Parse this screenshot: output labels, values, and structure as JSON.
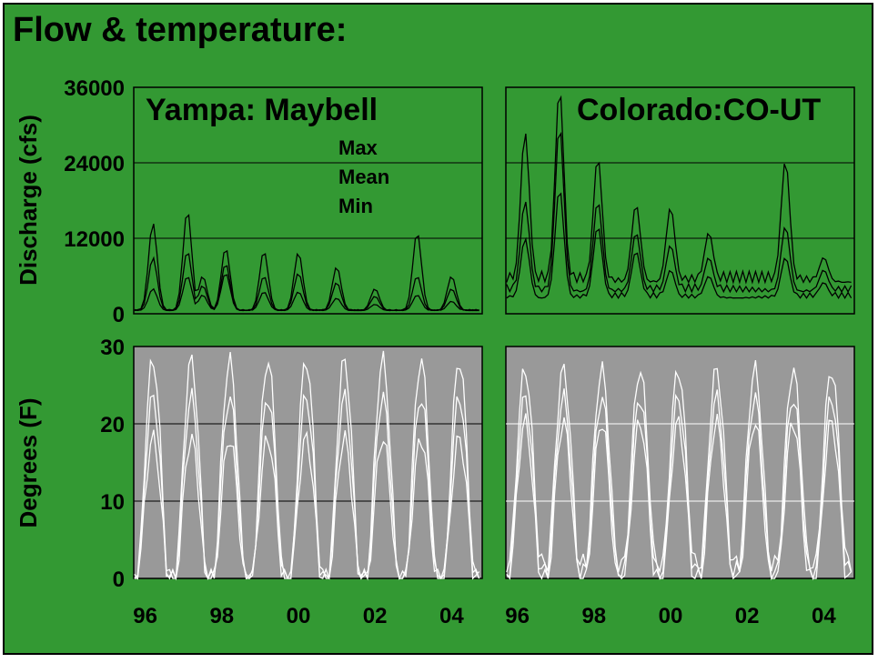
{
  "title": "Flow & temperature:",
  "legend": [
    "Max",
    "Mean",
    "Min"
  ],
  "colors": {
    "background": "#339933",
    "temp_panel": "#999999",
    "flow_line": "#000000",
    "temp_line": "#ffffff"
  },
  "chart_data": [
    {
      "type": "line",
      "title": "Yampa: Maybell",
      "ylabel": "Discharge (cfs)",
      "ylim": [
        0,
        36000
      ],
      "yticks": [
        "0",
        "12000",
        "24000",
        "36000"
      ],
      "xlim": [
        1995.5,
        2004.6
      ],
      "series": [
        {
          "name": "Max",
          "peaks": [
            [
              1996.0,
              14500
            ],
            [
              1996.9,
              16500
            ],
            [
              1997.3,
              6000
            ],
            [
              1997.9,
              10500
            ],
            [
              1998.9,
              10000
            ],
            [
              1999.8,
              9800
            ],
            [
              2000.8,
              7500
            ],
            [
              2001.8,
              4000
            ],
            [
              2002.9,
              13000
            ],
            [
              2003.8,
              6000
            ]
          ]
        },
        {
          "name": "Mean",
          "peaks": [
            [
              1996.0,
              9000
            ],
            [
              1996.9,
              10000
            ],
            [
              1997.3,
              4500
            ],
            [
              1997.9,
              8000
            ],
            [
              1998.9,
              6000
            ],
            [
              1999.8,
              6500
            ],
            [
              2000.8,
              5000
            ],
            [
              2001.8,
              2800
            ],
            [
              2002.9,
              6000
            ],
            [
              2003.8,
              4000
            ]
          ]
        },
        {
          "name": "Min",
          "peaks": [
            [
              1996.0,
              4000
            ],
            [
              1996.9,
              6000
            ],
            [
              1997.3,
              3000
            ],
            [
              1997.9,
              6500
            ],
            [
              1998.9,
              3500
            ],
            [
              1999.8,
              3500
            ],
            [
              2000.8,
              2500
            ],
            [
              2001.8,
              1500
            ],
            [
              2002.9,
              3000
            ],
            [
              2003.8,
              2000
            ]
          ]
        }
      ]
    },
    {
      "type": "line",
      "title": "Colorado:CO-UT",
      "ylabel": "",
      "ylim": [
        0,
        36000
      ],
      "yticks": [
        "0",
        "12000",
        "24000",
        "36000"
      ],
      "xlim": [
        1995.5,
        2004.6
      ],
      "series": [
        {
          "name": "Max",
          "base": 5000,
          "peaks": [
            [
              1996.0,
              29000
            ],
            [
              1996.9,
              36000
            ],
            [
              1997.9,
              25000
            ],
            [
              1998.9,
              17500
            ],
            [
              1999.8,
              17000
            ],
            [
              2000.8,
              13000
            ],
            [
              2002.8,
              24500
            ],
            [
              2003.8,
              9000
            ]
          ]
        },
        {
          "name": "Mean",
          "base": 3500,
          "peaks": [
            [
              1996.0,
              18000
            ],
            [
              1996.9,
              30000
            ],
            [
              1997.9,
              18000
            ],
            [
              1998.9,
              13000
            ],
            [
              1999.8,
              11000
            ],
            [
              2000.8,
              9000
            ],
            [
              2002.8,
              14000
            ],
            [
              2003.8,
              7000
            ]
          ]
        },
        {
          "name": "Min",
          "base": 2500,
          "peaks": [
            [
              1996.0,
              12000
            ],
            [
              1996.9,
              20000
            ],
            [
              1997.9,
              14000
            ],
            [
              1998.9,
              10000
            ],
            [
              1999.8,
              7000
            ],
            [
              2000.8,
              6000
            ],
            [
              2002.8,
              9000
            ],
            [
              2003.8,
              5000
            ]
          ]
        }
      ]
    },
    {
      "type": "line",
      "ylabel": "Degrees (F)",
      "ylim": [
        0,
        30
      ],
      "yticks": [
        "0",
        "10",
        "20",
        "30"
      ],
      "xlim": [
        1995.5,
        2004.6
      ],
      "xticks": [
        "96",
        "98",
        "00",
        "02",
        "04"
      ],
      "xtick_values": [
        1995.8,
        1997.8,
        1999.8,
        2001.8,
        2003.8
      ],
      "series": [
        {
          "name": "Max",
          "peak": 26.5,
          "low": 0
        },
        {
          "name": "Mean",
          "peak": 22,
          "low": 0
        },
        {
          "name": "Min",
          "peak": 17,
          "low": 0
        }
      ]
    },
    {
      "type": "line",
      "ylim": [
        0,
        30
      ],
      "yticks": [
        "0",
        "10",
        "20",
        "30"
      ],
      "xlim": [
        1995.5,
        2004.6
      ],
      "xticks": [
        "96",
        "98",
        "00",
        "02",
        "04"
      ],
      "xtick_values": [
        1995.8,
        1997.8,
        1999.8,
        2001.8,
        2003.8
      ],
      "series": [
        {
          "name": "Max",
          "peak": 25.5,
          "low": 2
        },
        {
          "name": "Mean",
          "peak": 22,
          "low": 1
        },
        {
          "name": "Min",
          "peak": 19,
          "low": 0
        }
      ]
    }
  ]
}
